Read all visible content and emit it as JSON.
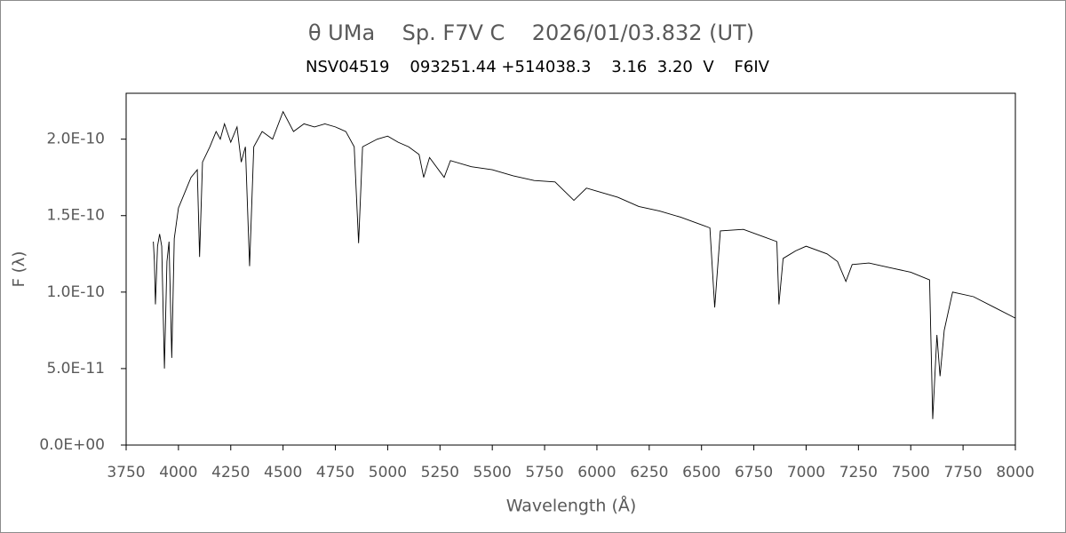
{
  "chart_data": {
    "type": "line",
    "title": "θ UMa    Sp. F7V C    2026/01/03.832 (UT)",
    "subtitle": "NSV04519    093251.44 +514038.3    3.16  3.20  V    F6IV",
    "xlabel": "Wavelength (Å)",
    "ylabel": "F (λ)",
    "color": "#000000",
    "x": [
      3880,
      3885,
      3890,
      3900,
      3910,
      3920,
      3933,
      3945,
      3955,
      3968,
      3980,
      4000,
      4030,
      4060,
      4090,
      4101,
      4115,
      4150,
      4180,
      4200,
      4220,
      4250,
      4280,
      4300,
      4320,
      4340,
      4360,
      4400,
      4450,
      4500,
      4550,
      4600,
      4650,
      4700,
      4750,
      4800,
      4840,
      4861,
      4880,
      4950,
      5000,
      5050,
      5100,
      5150,
      5172,
      5200,
      5270,
      5300,
      5400,
      5500,
      5600,
      5700,
      5800,
      5890,
      5950,
      6000,
      6100,
      6200,
      6300,
      6400,
      6500,
      6540,
      6563,
      6590,
      6700,
      6800,
      6860,
      6870,
      6890,
      6950,
      7000,
      7100,
      7150,
      7190,
      7220,
      7300,
      7400,
      7500,
      7590,
      7605,
      7625,
      7640,
      7660,
      7700,
      7800,
      7900,
      8000
    ],
    "values": [
      1.33e-10,
      1.2e-10,
      9.2e-11,
      1.3e-10,
      1.38e-10,
      1.3e-10,
      5e-11,
      1.2e-10,
      1.33e-10,
      5.7e-11,
      1.35e-10,
      1.55e-10,
      1.65e-10,
      1.75e-10,
      1.8e-10,
      1.23e-10,
      1.85e-10,
      1.95e-10,
      2.05e-10,
      2e-10,
      2.1e-10,
      1.98e-10,
      2.08e-10,
      1.85e-10,
      1.95e-10,
      1.17e-10,
      1.95e-10,
      2.05e-10,
      2e-10,
      2.18e-10,
      2.05e-10,
      2.1e-10,
      2.08e-10,
      2.1e-10,
      2.08e-10,
      2.05e-10,
      1.95e-10,
      1.32e-10,
      1.95e-10,
      2e-10,
      2.02e-10,
      1.98e-10,
      1.95e-10,
      1.9e-10,
      1.75e-10,
      1.88e-10,
      1.75e-10,
      1.86e-10,
      1.82e-10,
      1.8e-10,
      1.76e-10,
      1.73e-10,
      1.72e-10,
      1.6e-10,
      1.68e-10,
      1.66e-10,
      1.62e-10,
      1.56e-10,
      1.53e-10,
      1.49e-10,
      1.44e-10,
      1.42e-10,
      9e-11,
      1.4e-10,
      1.41e-10,
      1.36e-10,
      1.33e-10,
      9.2e-11,
      1.22e-10,
      1.27e-10,
      1.3e-10,
      1.25e-10,
      1.2e-10,
      1.07e-10,
      1.18e-10,
      1.19e-10,
      1.16e-10,
      1.13e-10,
      1.08e-10,
      1.7e-11,
      7.2e-11,
      4.5e-11,
      7.5e-11,
      1e-10,
      9.7e-11,
      9e-11,
      8.3e-11
    ],
    "xlim": [
      3750,
      8000
    ],
    "xticks": [
      3750,
      4000,
      4250,
      4500,
      4750,
      5000,
      5250,
      5500,
      5750,
      6000,
      6250,
      6500,
      6750,
      7000,
      7250,
      7500,
      7750,
      8000
    ],
    "ylim": [
      0,
      2.3e-10
    ],
    "yticks": [
      {
        "value": 0,
        "label": "0.0E+00"
      },
      {
        "value": 5e-11,
        "label": "5.0E-11"
      },
      {
        "value": 1e-10,
        "label": "1.0E-10"
      },
      {
        "value": 1.5e-10,
        "label": "1.5E-10"
      },
      {
        "value": 2e-10,
        "label": "2.0E-10"
      }
    ]
  }
}
